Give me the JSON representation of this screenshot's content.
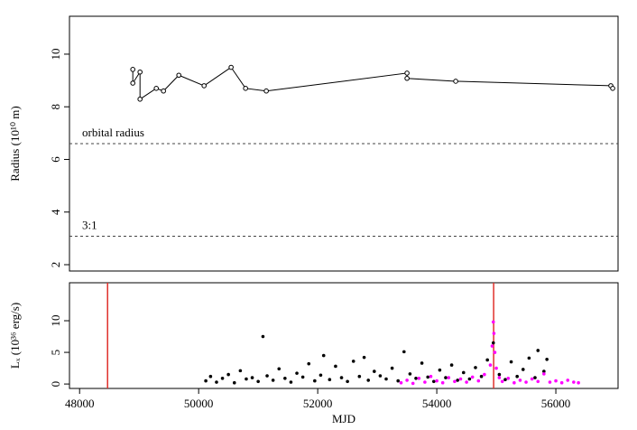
{
  "chart_data": [
    {
      "type": "line",
      "y_label": "Radius (10¹⁰ m)",
      "color": "#000000",
      "ylim": [
        1.76,
        11.44
      ],
      "yticks": [
        2,
        4,
        6,
        8,
        10
      ],
      "xlim": [
        47830,
        57045
      ],
      "series": [
        {
          "x": [
            48894,
            48894,
            49015,
            49015,
            49288,
            49409,
            49667,
            50091,
            50545,
            50788,
            51136,
            53500,
            53500,
            54318,
            56924,
            56955
          ],
          "values": [
            9.42,
            8.9,
            9.32,
            8.29,
            8.7,
            8.6,
            9.2,
            8.8,
            9.5,
            8.7,
            8.6,
            9.28,
            9.08,
            8.97,
            8.8,
            8.7
          ]
        }
      ],
      "hlines": [
        {
          "value": 6.6,
          "label": "orbital radius"
        },
        {
          "value": 3.08,
          "label": "3:1"
        }
      ]
    },
    {
      "type": "scatter",
      "x_label": "MJD",
      "y_label": "Lₓ (10³⁶ erg/s)",
      "xlim": [
        47830,
        57045
      ],
      "xticks": [
        48000,
        50000,
        52000,
        54000,
        56000
      ],
      "ylim": [
        -0.7,
        16
      ],
      "yticks": [
        0,
        5,
        10
      ],
      "vlines": [
        48470,
        54955
      ],
      "vline_color": "#e0302a",
      "series": [
        {
          "color": "#000000",
          "x": [
            50120,
            50200,
            50300,
            50400,
            50500,
            50600,
            50700,
            50800,
            50900,
            51000,
            51080,
            51150,
            51250,
            51350,
            51450,
            51550,
            51650,
            51750,
            51850,
            51950,
            52050,
            52100,
            52200,
            52300,
            52400,
            52500,
            52600,
            52700,
            52780,
            52850,
            52950,
            53050,
            53150,
            53250,
            53350,
            53450,
            53550,
            53650,
            53750,
            53850,
            53950,
            54050,
            54150,
            54250,
            54350,
            54450,
            54550,
            54650,
            54750,
            54850,
            54950,
            55050,
            55150,
            55250,
            55350,
            55450,
            55550,
            55650,
            55700,
            55800,
            55850
          ],
          "values": [
            0.5,
            1.2,
            0.3,
            0.9,
            1.5,
            0.2,
            2.1,
            0.8,
            1.0,
            0.4,
            7.5,
            1.3,
            0.6,
            2.4,
            0.9,
            0.3,
            1.7,
            1.1,
            3.2,
            0.5,
            1.4,
            4.5,
            0.7,
            2.8,
            1.0,
            0.4,
            3.6,
            1.2,
            4.2,
            0.6,
            2.0,
            1.3,
            0.8,
            2.5,
            0.5,
            5.1,
            1.6,
            0.9,
            3.3,
            1.1,
            0.4,
            2.2,
            1.0,
            3.0,
            0.6,
            1.8,
            0.8,
            2.6,
            1.2,
            3.8,
            6.5,
            1.5,
            0.7,
            3.5,
            1.2,
            2.3,
            4.1,
            1.0,
            5.3,
            2.0,
            3.9
          ]
        },
        {
          "color": "#ff00ff",
          "x": [
            53400,
            53500,
            53600,
            53700,
            53800,
            53900,
            54000,
            54100,
            54200,
            54300,
            54400,
            54500,
            54600,
            54700,
            54800,
            54900,
            54930,
            54950,
            54960,
            54975,
            55000,
            55050,
            55100,
            55200,
            55300,
            55400,
            55500,
            55600,
            55700,
            55800,
            55900,
            56000,
            56100,
            56200,
            56300,
            56380
          ],
          "values": [
            0.2,
            0.6,
            0.1,
            0.9,
            0.3,
            1.2,
            0.5,
            0.2,
            1.0,
            0.4,
            0.8,
            0.3,
            1.1,
            0.5,
            1.5,
            3.0,
            6.0,
            9.8,
            8.0,
            5.0,
            2.5,
            1.0,
            0.4,
            0.9,
            0.2,
            0.6,
            0.3,
            0.8,
            0.4,
            1.6,
            0.3,
            0.5,
            0.2,
            0.6,
            0.3,
            0.2
          ]
        }
      ]
    }
  ]
}
